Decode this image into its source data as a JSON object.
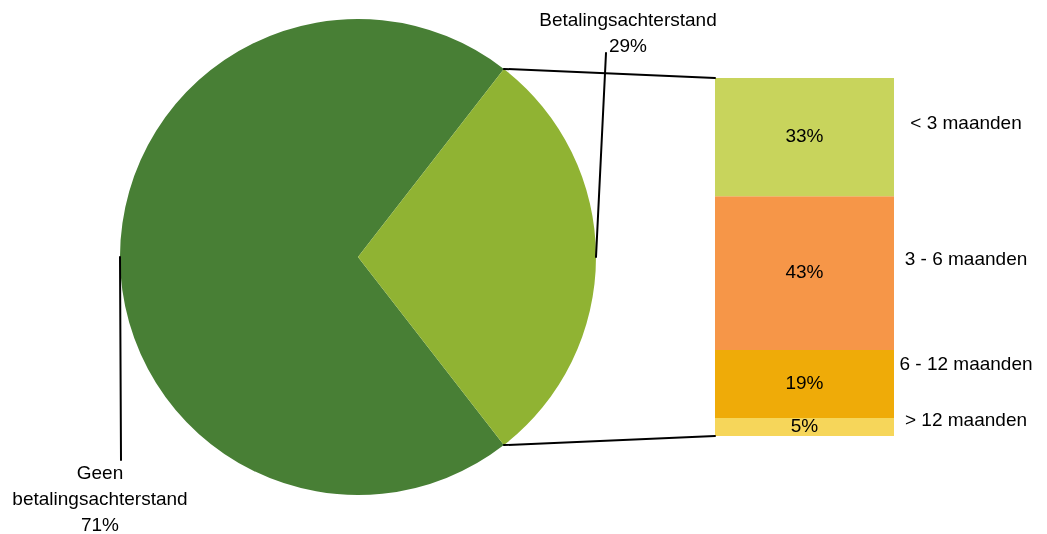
{
  "chart_data": [
    {
      "type": "pie",
      "categories": [
        "Geen betalingsachterstand",
        "Betalingsachterstand"
      ],
      "values": [
        71,
        29
      ],
      "colors": [
        "#487f35",
        "#90b333"
      ],
      "value_labels": [
        "71%",
        "29%"
      ]
    },
    {
      "type": "bar",
      "stacked": true,
      "categories": [
        null
      ],
      "tick_labels": false,
      "series": [
        {
          "name": "> 12 maanden",
          "color": "#f6d65a",
          "values": [
            5
          ],
          "value_labels": [
            "5%"
          ]
        },
        {
          "name": "6 - 12 maanden",
          "color": "#efab08",
          "values": [
            19
          ],
          "value_labels": [
            "19%"
          ]
        },
        {
          "name": "3 - 6 maanden",
          "color": "#f69648",
          "values": [
            43
          ],
          "value_labels": [
            "43%"
          ]
        },
        {
          "name": "< 3 maanden",
          "color": "#c8d45c",
          "values": [
            33
          ],
          "value_labels": [
            "33%"
          ]
        }
      ]
    }
  ]
}
